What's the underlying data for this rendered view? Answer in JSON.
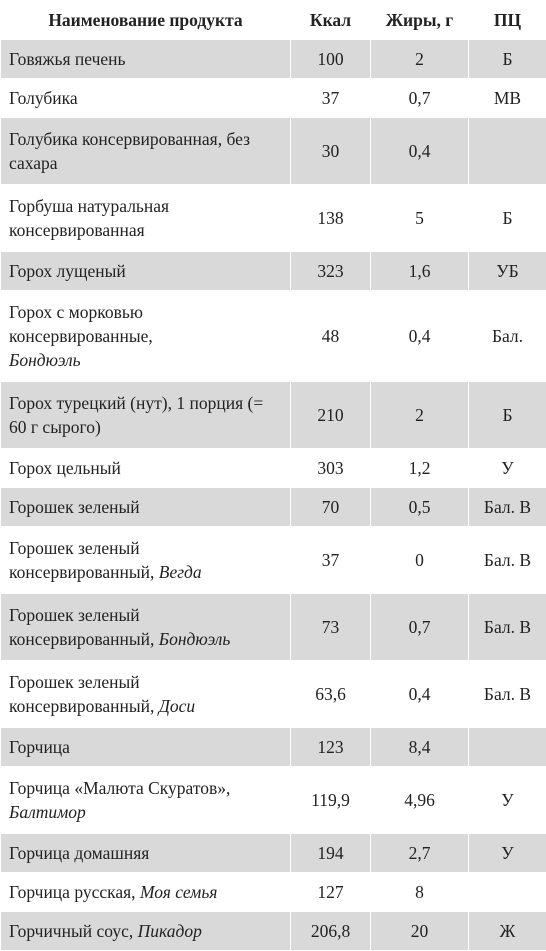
{
  "header": {
    "name": "Наименование продукта",
    "kcal": "Ккал",
    "fat": "Жиры, г",
    "pc": "ПЦ"
  },
  "rows": [
    {
      "name": "Говяжья печень",
      "brand": "",
      "kcal": "100",
      "fat": "2",
      "pc": "Б"
    },
    {
      "name": "Голубика",
      "brand": "",
      "kcal": "37",
      "fat": "0,7",
      "pc": "МВ"
    },
    {
      "name": "Голубика консервированная, без сахара",
      "brand": "",
      "kcal": "30",
      "fat": "0,4",
      "pc": ""
    },
    {
      "name": "Горбуша натуральная консервированная",
      "brand": "",
      "kcal": "138",
      "fat": "5",
      "pc": "Б"
    },
    {
      "name": "Горох лущеный",
      "brand": "",
      "kcal": "323",
      "fat": "1,6",
      "pc": "УБ"
    },
    {
      "name": "Горох с морковью консервированные,",
      "brand": "Бондюэль",
      "kcal": "48",
      "fat": "0,4",
      "pc": "Бал."
    },
    {
      "name": "Горох турецкий (нут), 1 порция (= 60 г сырого)",
      "brand": "",
      "kcal": "210",
      "fat": "2",
      "pc": "Б"
    },
    {
      "name": "Горох цельный",
      "brand": "",
      "kcal": "303",
      "fat": "1,2",
      "pc": "У"
    },
    {
      "name": "Горошек зеленый",
      "brand": "",
      "kcal": "70",
      "fat": "0,5",
      "pc": "Бал. В"
    },
    {
      "name": "Горошек зеленый консервированный,",
      "brand": "Вегда",
      "kcal": "37",
      "fat": "0",
      "pc": "Бал. В"
    },
    {
      "name": "Горошек зеленый консервированный,",
      "brand": "Бондюэль",
      "kcal": "73",
      "fat": "0,7",
      "pc": "Бал. В"
    },
    {
      "name": "Горошек зеленый консервированный,",
      "brand": "Доси",
      "kcal": "63,6",
      "fat": "0,4",
      "pc": "Бал. В"
    },
    {
      "name": "Горчица",
      "brand": "",
      "kcal": "123",
      "fat": "8,4",
      "pc": ""
    },
    {
      "name": "Горчица «Малюта Скуратов»,",
      "brand": "Балтимор",
      "kcal": "119,9",
      "fat": "4,96",
      "pc": "У"
    },
    {
      "name": "Горчица домашняя",
      "brand": "",
      "kcal": "194",
      "fat": "2,7",
      "pc": "У"
    },
    {
      "name": "Горчица русская,",
      "brand": "Моя семья",
      "kcal": "127",
      "fat": "8",
      "pc": ""
    },
    {
      "name": "Горчичный соус,",
      "brand": "Пикадор",
      "kcal": "206,8",
      "fat": "20",
      "pc": "Ж"
    }
  ]
}
